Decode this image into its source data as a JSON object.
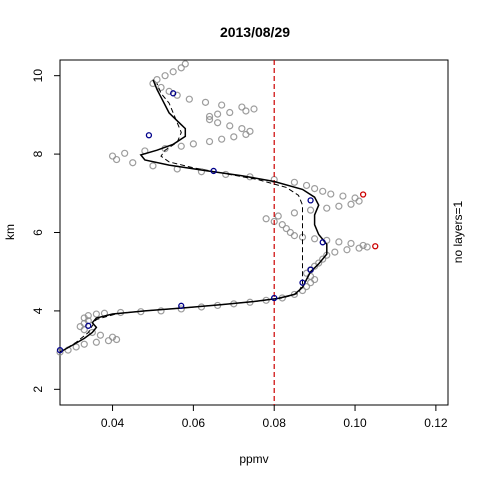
{
  "chart_data": {
    "type": "scatter",
    "title": "2013/08/29",
    "xlabel": "ppmv",
    "ylabel": "km",
    "right_label": "no layers=1",
    "xlim": [
      0.027,
      0.123
    ],
    "ylim": [
      1.6,
      10.4
    ],
    "x_ticks": [
      0.04,
      0.06,
      0.08,
      0.1,
      0.12
    ],
    "x_tick_labels": [
      "0.04",
      "0.06",
      "0.08",
      "0.10",
      "0.12"
    ],
    "y_ticks": [
      2,
      4,
      6,
      8,
      10
    ],
    "y_tick_labels": [
      "2",
      "4",
      "6",
      "8",
      "10"
    ],
    "reference_line": {
      "x": 0.08,
      "color": "#cc0000",
      "style": "dashed"
    },
    "colors": {
      "observations": "#8c8c8c",
      "fit": "#000000",
      "nodes": "#00008b",
      "outliers": "#cc0000"
    },
    "observations": [
      [
        0.027,
        2.95
      ],
      [
        0.029,
        3.0
      ],
      [
        0.031,
        3.08
      ],
      [
        0.033,
        3.15
      ],
      [
        0.036,
        3.2
      ],
      [
        0.039,
        3.24
      ],
      [
        0.041,
        3.27
      ],
      [
        0.04,
        3.33
      ],
      [
        0.037,
        3.38
      ],
      [
        0.035,
        3.45
      ],
      [
        0.033,
        3.52
      ],
      [
        0.032,
        3.6
      ],
      [
        0.033,
        3.68
      ],
      [
        0.034,
        3.75
      ],
      [
        0.033,
        3.82
      ],
      [
        0.034,
        3.88
      ],
      [
        0.036,
        3.92
      ],
      [
        0.038,
        3.94
      ],
      [
        0.042,
        3.96
      ],
      [
        0.047,
        3.98
      ],
      [
        0.052,
        4.0
      ],
      [
        0.057,
        4.05
      ],
      [
        0.062,
        4.1
      ],
      [
        0.066,
        4.14
      ],
      [
        0.07,
        4.18
      ],
      [
        0.074,
        4.22
      ],
      [
        0.078,
        4.27
      ],
      [
        0.082,
        4.33
      ],
      [
        0.085,
        4.42
      ],
      [
        0.087,
        4.52
      ],
      [
        0.088,
        4.62
      ],
      [
        0.089,
        4.72
      ],
      [
        0.09,
        4.8
      ],
      [
        0.089,
        4.88
      ],
      [
        0.088,
        4.96
      ],
      [
        0.089,
        5.05
      ],
      [
        0.09,
        5.14
      ],
      [
        0.091,
        5.22
      ],
      [
        0.092,
        5.32
      ],
      [
        0.093,
        5.42
      ],
      [
        0.095,
        5.5
      ],
      [
        0.098,
        5.56
      ],
      [
        0.101,
        5.6
      ],
      [
        0.103,
        5.63
      ],
      [
        0.102,
        5.67
      ],
      [
        0.099,
        5.72
      ],
      [
        0.096,
        5.76
      ],
      [
        0.093,
        5.8
      ],
      [
        0.09,
        5.84
      ],
      [
        0.087,
        5.88
      ],
      [
        0.085,
        5.92
      ],
      [
        0.084,
        6.0
      ],
      [
        0.083,
        6.1
      ],
      [
        0.082,
        6.2
      ],
      [
        0.08,
        6.28
      ],
      [
        0.078,
        6.35
      ],
      [
        0.081,
        6.42
      ],
      [
        0.085,
        6.5
      ],
      [
        0.089,
        6.57
      ],
      [
        0.093,
        6.62
      ],
      [
        0.096,
        6.67
      ],
      [
        0.099,
        6.72
      ],
      [
        0.101,
        6.8
      ],
      [
        0.1,
        6.88
      ],
      [
        0.097,
        6.93
      ],
      [
        0.094,
        6.98
      ],
      [
        0.092,
        7.05
      ],
      [
        0.09,
        7.12
      ],
      [
        0.088,
        7.2
      ],
      [
        0.085,
        7.28
      ],
      [
        0.08,
        7.35
      ],
      [
        0.074,
        7.42
      ],
      [
        0.068,
        7.48
      ],
      [
        0.062,
        7.55
      ],
      [
        0.056,
        7.62
      ],
      [
        0.05,
        7.7
      ],
      [
        0.045,
        7.78
      ],
      [
        0.041,
        7.86
      ],
      [
        0.04,
        7.95
      ],
      [
        0.043,
        8.02
      ],
      [
        0.048,
        8.08
      ],
      [
        0.053,
        8.14
      ],
      [
        0.057,
        8.2
      ],
      [
        0.06,
        8.26
      ],
      [
        0.064,
        8.32
      ],
      [
        0.067,
        8.38
      ],
      [
        0.07,
        8.44
      ],
      [
        0.073,
        8.5
      ],
      [
        0.074,
        8.58
      ],
      [
        0.072,
        8.65
      ],
      [
        0.069,
        8.72
      ],
      [
        0.066,
        8.8
      ],
      [
        0.064,
        8.88
      ],
      [
        0.064,
        8.96
      ],
      [
        0.066,
        9.02
      ],
      [
        0.069,
        9.06
      ],
      [
        0.073,
        9.1
      ],
      [
        0.075,
        9.15
      ],
      [
        0.072,
        9.2
      ],
      [
        0.067,
        9.25
      ],
      [
        0.063,
        9.32
      ],
      [
        0.059,
        9.4
      ],
      [
        0.056,
        9.5
      ],
      [
        0.054,
        9.6
      ],
      [
        0.052,
        9.7
      ],
      [
        0.05,
        9.8
      ],
      [
        0.051,
        9.9
      ],
      [
        0.053,
        10.0
      ],
      [
        0.055,
        10.1
      ],
      [
        0.057,
        10.2
      ],
      [
        0.058,
        10.3
      ]
    ],
    "fit_solid": [
      [
        0.027,
        2.95
      ],
      [
        0.03,
        3.12
      ],
      [
        0.033,
        3.3
      ],
      [
        0.035,
        3.45
      ],
      [
        0.036,
        3.58
      ],
      [
        0.035,
        3.7
      ],
      [
        0.036,
        3.82
      ],
      [
        0.04,
        3.92
      ],
      [
        0.048,
        4.0
      ],
      [
        0.058,
        4.08
      ],
      [
        0.067,
        4.16
      ],
      [
        0.075,
        4.24
      ],
      [
        0.081,
        4.32
      ],
      [
        0.085,
        4.42
      ],
      [
        0.087,
        4.6
      ],
      [
        0.088,
        4.8
      ],
      [
        0.089,
        5.0
      ],
      [
        0.091,
        5.2
      ],
      [
        0.093,
        5.45
      ],
      [
        0.093,
        5.7
      ],
      [
        0.091,
        5.95
      ],
      [
        0.09,
        6.2
      ],
      [
        0.09,
        6.45
      ],
      [
        0.091,
        6.7
      ],
      [
        0.09,
        6.9
      ],
      [
        0.087,
        7.1
      ],
      [
        0.08,
        7.3
      ],
      [
        0.072,
        7.45
      ],
      [
        0.063,
        7.58
      ],
      [
        0.054,
        7.72
      ],
      [
        0.048,
        7.85
      ],
      [
        0.047,
        7.98
      ],
      [
        0.051,
        8.1
      ],
      [
        0.055,
        8.25
      ],
      [
        0.058,
        8.45
      ],
      [
        0.058,
        8.65
      ],
      [
        0.056,
        8.85
      ],
      [
        0.054,
        9.05
      ],
      [
        0.053,
        9.25
      ],
      [
        0.052,
        9.45
      ],
      [
        0.051,
        9.65
      ],
      [
        0.05,
        9.9
      ]
    ],
    "fit_dashed": [
      [
        0.027,
        2.95
      ],
      [
        0.031,
        3.2
      ],
      [
        0.034,
        3.45
      ],
      [
        0.035,
        3.62
      ],
      [
        0.036,
        3.78
      ],
      [
        0.041,
        3.93
      ],
      [
        0.049,
        4.01
      ],
      [
        0.059,
        4.09
      ],
      [
        0.068,
        4.17
      ],
      [
        0.076,
        4.25
      ],
      [
        0.082,
        4.33
      ],
      [
        0.086,
        4.45
      ],
      [
        0.087,
        4.7
      ],
      [
        0.087,
        4.95
      ],
      [
        0.087,
        5.2
      ],
      [
        0.087,
        5.45
      ],
      [
        0.087,
        5.7
      ],
      [
        0.087,
        5.95
      ],
      [
        0.087,
        6.2
      ],
      [
        0.087,
        6.45
      ],
      [
        0.087,
        6.7
      ],
      [
        0.086,
        6.95
      ],
      [
        0.083,
        7.15
      ],
      [
        0.076,
        7.35
      ],
      [
        0.068,
        7.5
      ],
      [
        0.06,
        7.65
      ],
      [
        0.054,
        7.8
      ],
      [
        0.052,
        7.95
      ],
      [
        0.053,
        8.1
      ],
      [
        0.056,
        8.3
      ],
      [
        0.057,
        8.55
      ],
      [
        0.056,
        8.8
      ],
      [
        0.055,
        9.05
      ],
      [
        0.054,
        9.3
      ],
      [
        0.052,
        9.55
      ],
      [
        0.051,
        9.8
      ]
    ],
    "nodes": [
      [
        0.027,
        3.0
      ],
      [
        0.034,
        3.62
      ],
      [
        0.057,
        4.13
      ],
      [
        0.08,
        4.33
      ],
      [
        0.087,
        4.72
      ],
      [
        0.089,
        5.05
      ],
      [
        0.092,
        5.75
      ],
      [
        0.089,
        6.82
      ],
      [
        0.065,
        7.57
      ],
      [
        0.049,
        8.48
      ],
      [
        0.055,
        9.55
      ]
    ],
    "outliers": [
      [
        0.102,
        6.97
      ],
      [
        0.105,
        5.65
      ]
    ]
  }
}
